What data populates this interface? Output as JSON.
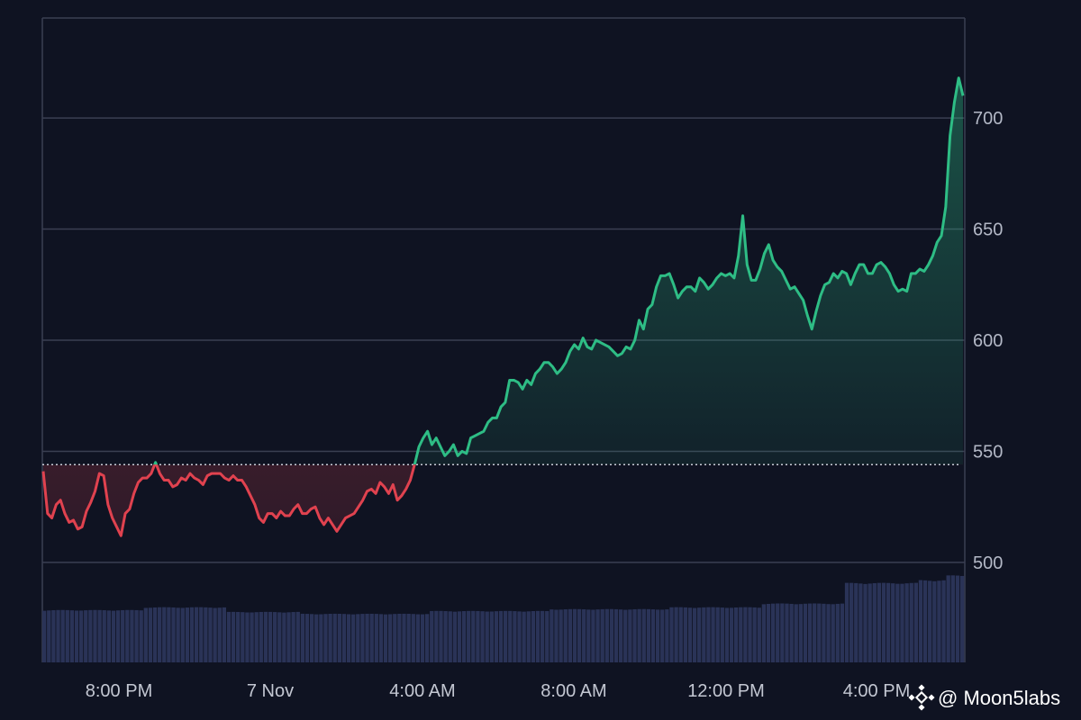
{
  "chart_data": {
    "type": "area",
    "title": "",
    "xlabel": "",
    "ylabel": "",
    "ylim": [
      455,
      745
    ],
    "y_ticks": [
      "500",
      "550",
      "600",
      "650",
      "700"
    ],
    "x_ticks": [
      "8:00 PM",
      "7 Nov",
      "4:00 AM",
      "8:00 AM",
      "12:00 PM",
      "4:00 PM"
    ],
    "baseline": 544,
    "grid": true,
    "colors": {
      "up": "#2ebd85",
      "down": "#e0424f",
      "volume": "#2a3357",
      "grid": "#3a3f52",
      "baseline": "#c9ccd6"
    },
    "series": [
      {
        "values": [
          541,
          522,
          520,
          526,
          528,
          522,
          518,
          519,
          515,
          516,
          523,
          527,
          532,
          540,
          539,
          526,
          520,
          516,
          512,
          522,
          524,
          531,
          536,
          538,
          538,
          540,
          545,
          540,
          537,
          537,
          534,
          535,
          538,
          537,
          540,
          538,
          537,
          535,
          539,
          540,
          540,
          540,
          538,
          537,
          539,
          537,
          537,
          534,
          530,
          526,
          520,
          518,
          522,
          522,
          520,
          523,
          521,
          521,
          524,
          526,
          522,
          522,
          524,
          525,
          520,
          517,
          520,
          517,
          514,
          517,
          520,
          521,
          522,
          525,
          528,
          532,
          533,
          531,
          536,
          534,
          531,
          535,
          528,
          530,
          533,
          537,
          544,
          552,
          556,
          559,
          553,
          556,
          552,
          548,
          550,
          553,
          548,
          550,
          549,
          556,
          557,
          558,
          559,
          563,
          565,
          565,
          570,
          572,
          582,
          582,
          581,
          578,
          582,
          580,
          585,
          587,
          590,
          590,
          588,
          585,
          587,
          590,
          595,
          598,
          596,
          601,
          597,
          596,
          600,
          599,
          598,
          597,
          595,
          593,
          594,
          597,
          596,
          600,
          609,
          605,
          614,
          616,
          624,
          629,
          629,
          630,
          625,
          619,
          622,
          624,
          624,
          622,
          628,
          626,
          623,
          625,
          628,
          630,
          629,
          630,
          628,
          638,
          656,
          634,
          627,
          627,
          632,
          639,
          643,
          636,
          633,
          631,
          627,
          623,
          624,
          621,
          618,
          611,
          605,
          613,
          620,
          625,
          626,
          630,
          628,
          631,
          630,
          625,
          630,
          634,
          634,
          630,
          630,
          634,
          635,
          633,
          630,
          625,
          622,
          623,
          622,
          630,
          630,
          632,
          631,
          634,
          638,
          644,
          647,
          660,
          692,
          707,
          718,
          710
        ]
      }
    ],
    "volume": [
      {
        "from": 0,
        "to": 0.11,
        "value": 0.56
      },
      {
        "from": 0.11,
        "to": 0.2,
        "value": 0.59
      },
      {
        "from": 0.2,
        "to": 0.28,
        "value": 0.54
      },
      {
        "from": 0.28,
        "to": 0.42,
        "value": 0.52
      },
      {
        "from": 0.42,
        "to": 0.55,
        "value": 0.55
      },
      {
        "from": 0.55,
        "to": 0.68,
        "value": 0.57
      },
      {
        "from": 0.68,
        "to": 0.78,
        "value": 0.59
      },
      {
        "from": 0.78,
        "to": 0.87,
        "value": 0.63
      },
      {
        "from": 0.87,
        "to": 0.95,
        "value": 0.85
      },
      {
        "from": 0.95,
        "to": 0.98,
        "value": 0.88
      },
      {
        "from": 0.98,
        "to": 1.0,
        "value": 0.93
      }
    ]
  },
  "watermark": {
    "text": "@ Moon5labs",
    "icon": "binance-icon"
  }
}
